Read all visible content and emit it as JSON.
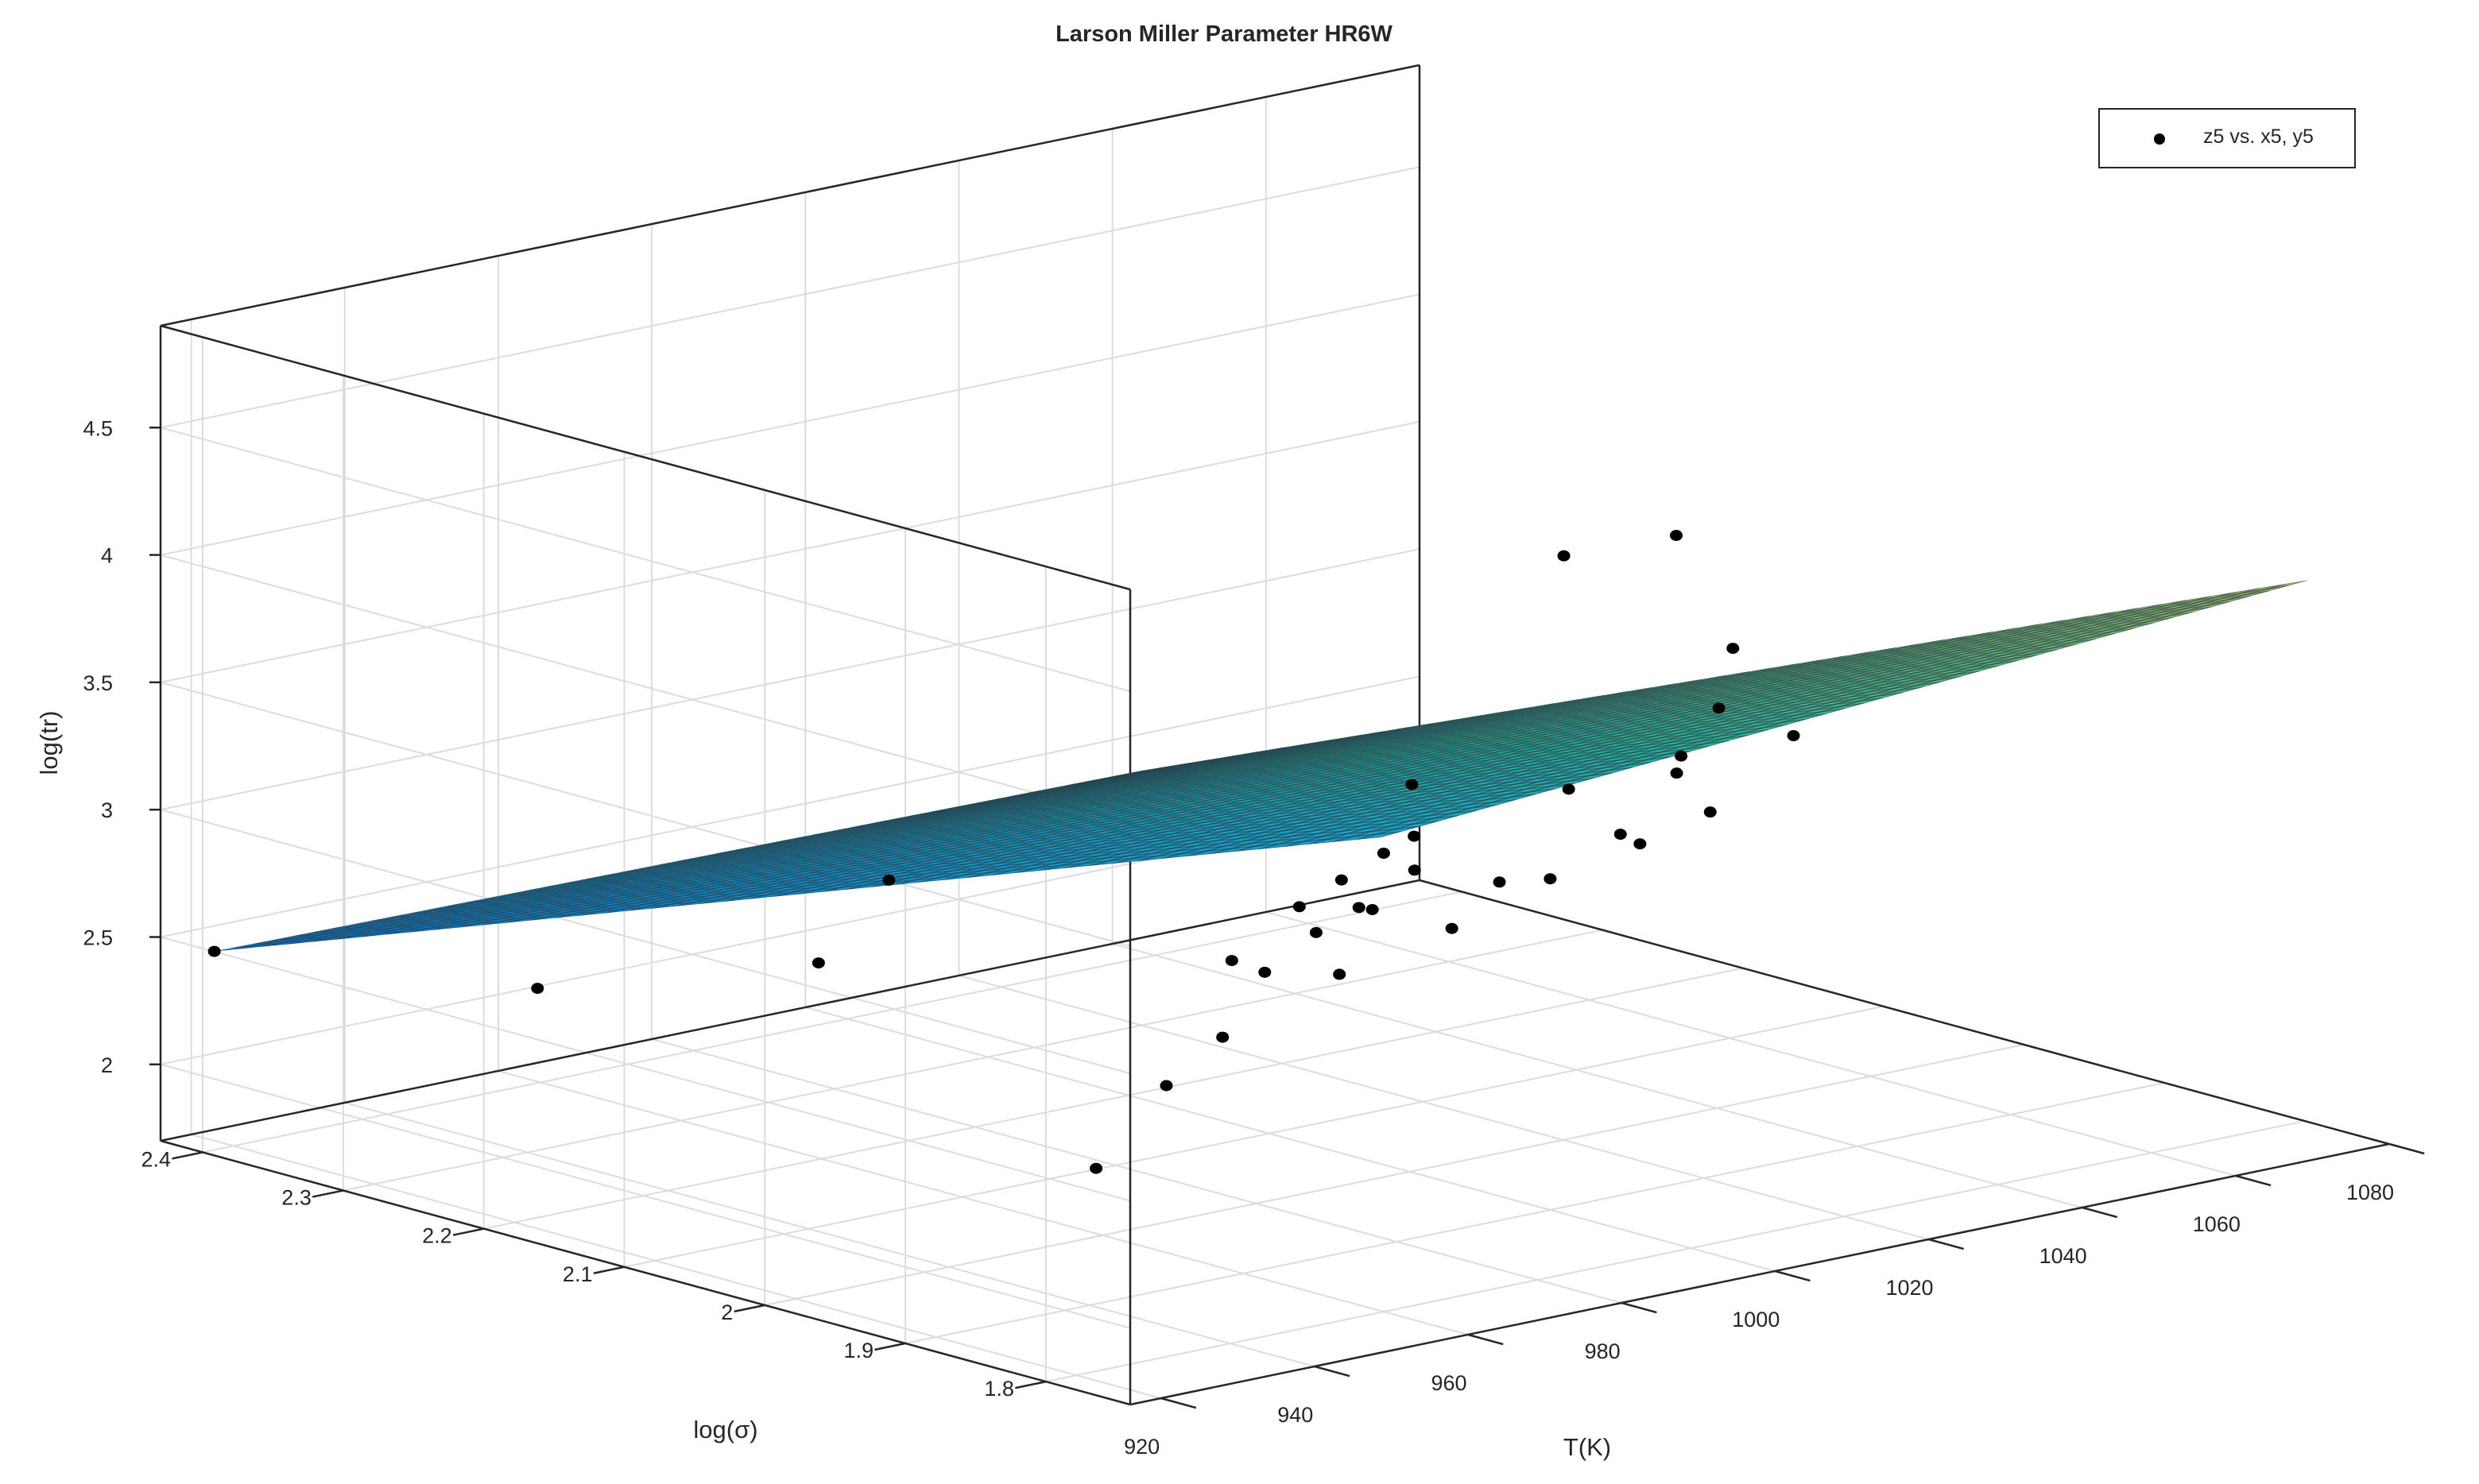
{
  "chart_data": {
    "type": "surface3d",
    "title": "Larson Miller Parameter HR6W",
    "xlabel": "T(K)",
    "ylabel": "log(σ)",
    "zlabel": "log(tr)",
    "xlim": [
      916,
      1080
    ],
    "ylim": [
      1.74,
      2.43
    ],
    "zlim": [
      1.7,
      4.9
    ],
    "x_ticks": [
      "920",
      "940",
      "960",
      "980",
      "1000",
      "1020",
      "1040",
      "1060",
      "1080"
    ],
    "y_ticks": [
      "1.8",
      "1.9",
      "2",
      "2.1",
      "2.2",
      "2.3",
      "2.4"
    ],
    "z_ticks": [
      "2",
      "2.5",
      "3",
      "3.5",
      "4",
      "4.5"
    ],
    "grid": true,
    "legend": {
      "position": "top-right",
      "entries": [
        "z5 vs. x5, y5"
      ]
    },
    "colormap": [
      "#0f7fd8",
      "#1aa0c6",
      "#2cb39b",
      "#66bc7a",
      "#b9c66a"
    ],
    "surface": {
      "x": [
        923,
        1075
      ],
      "y": [
        1.77,
        2.43
      ],
      "corner_z": {
        "low_T_high_sigma": 2.4,
        "low_T_low_sigma": 4.1,
        "high_T_low_sigma": 3.9,
        "high_T_high_sigma": 1.9
      }
    },
    "series": [
      {
        "name": "z5 vs. x5, y5",
        "points": [
          [
            923,
            2.43,
            2.4
          ],
          [
            923,
            2.2,
            2.6
          ],
          [
            923,
            2.0,
            3.0
          ],
          [
            923,
            1.95,
            3.4
          ],
          [
            950,
            1.95,
            2.1
          ],
          [
            950,
            1.9,
            2.5
          ],
          [
            950,
            1.86,
            2.75
          ],
          [
            950,
            1.83,
            3.05
          ],
          [
            960,
            1.86,
            3.2
          ],
          [
            960,
            1.83,
            3.35
          ],
          [
            960,
            1.8,
            3.5
          ],
          [
            960,
            1.78,
            3.8
          ],
          [
            975,
            1.99,
            2.7
          ],
          [
            975,
            1.93,
            2.9
          ],
          [
            975,
            1.89,
            3.05
          ],
          [
            975,
            1.86,
            3.25
          ],
          [
            1000,
            2.05,
            2.4
          ],
          [
            1000,
            1.97,
            2.7
          ],
          [
            1000,
            1.9,
            3.0
          ],
          [
            1000,
            1.85,
            3.25
          ],
          [
            1000,
            1.81,
            3.55
          ],
          [
            1000,
            1.78,
            3.85
          ],
          [
            1000,
            1.77,
            4.1
          ],
          [
            1030,
            2.2,
            2.25
          ],
          [
            1030,
            2.1,
            2.5
          ],
          [
            1030,
            2.0,
            2.8
          ],
          [
            1030,
            1.95,
            3.0
          ],
          [
            1050,
            2.27,
            2.3
          ],
          [
            1050,
            2.16,
            2.65
          ],
          [
            1050,
            2.08,
            2.9
          ],
          [
            1050,
            2.0,
            3.1
          ],
          [
            1075,
            2.3,
            3.2
          ],
          [
            1075,
            2.22,
            3.4
          ]
        ]
      }
    ]
  }
}
